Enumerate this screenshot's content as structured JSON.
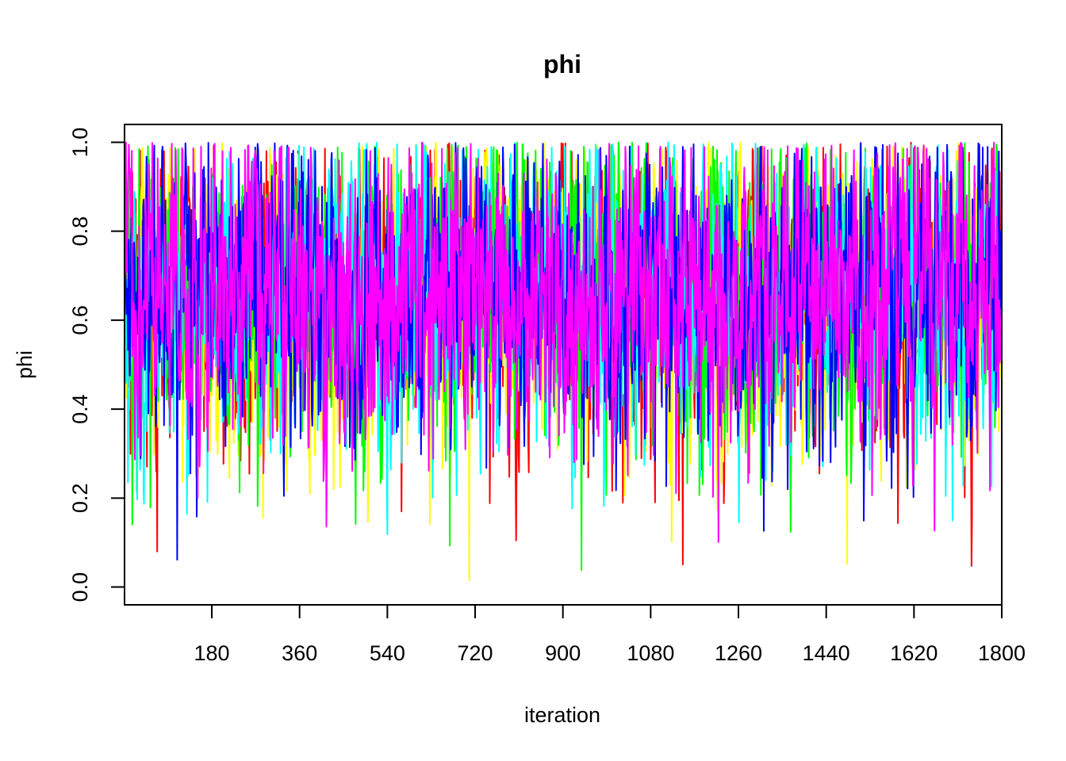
{
  "chart_data": {
    "type": "line",
    "title": "phi",
    "xlabel": "iteration",
    "ylabel": "phi",
    "xlim": [
      1,
      1800
    ],
    "ylim": [
      0.0,
      1.0
    ],
    "x_ticks": [
      180,
      360,
      540,
      720,
      900,
      1080,
      1260,
      1440,
      1620,
      1800
    ],
    "y_ticks": [
      "0.0",
      "0.2",
      "0.4",
      "0.6",
      "0.8",
      "1.0"
    ],
    "grid": false,
    "legend": "none",
    "series": [
      {
        "color": "#FF0000",
        "mean": 0.66,
        "min": 0.0,
        "max": 1.0,
        "n": 1800
      },
      {
        "color": "#FFFF00",
        "mean": 0.67,
        "min": 0.0,
        "max": 1.0,
        "n": 1800
      },
      {
        "color": "#00FF00",
        "mean": 0.68,
        "min": 0.0,
        "max": 1.0,
        "n": 1800
      },
      {
        "color": "#00FFFF",
        "mean": 0.66,
        "min": 0.02,
        "max": 1.0,
        "n": 1800
      },
      {
        "color": "#0000FF",
        "mean": 0.67,
        "min": 0.02,
        "max": 1.0,
        "n": 1800
      },
      {
        "color": "#FF00FF",
        "mean": 0.67,
        "min": 0.0,
        "max": 1.0,
        "n": 1800
      }
    ]
  }
}
